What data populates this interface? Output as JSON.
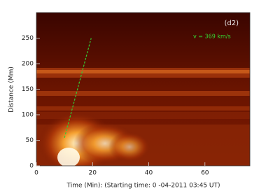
{
  "chart_data": {
    "type": "line",
    "panel_label": "(d2)",
    "annotation": "v = 369 km/s",
    "xlabel": "Time (Min): (Starting time: 0 -04-2011 03:45 UT)",
    "ylabel": "Distance (Mm)",
    "x": [
      10,
      19.5
    ],
    "series": [
      {
        "color": "#33cc33",
        "dashed": true,
        "values": [
          55,
          250
        ]
      }
    ],
    "xlim": [
      0,
      76
    ],
    "xticks": [
      0,
      20,
      40,
      60
    ],
    "ylim": [
      0,
      300
    ],
    "yticks": [
      0,
      50,
      100,
      150,
      200,
      250
    ]
  }
}
